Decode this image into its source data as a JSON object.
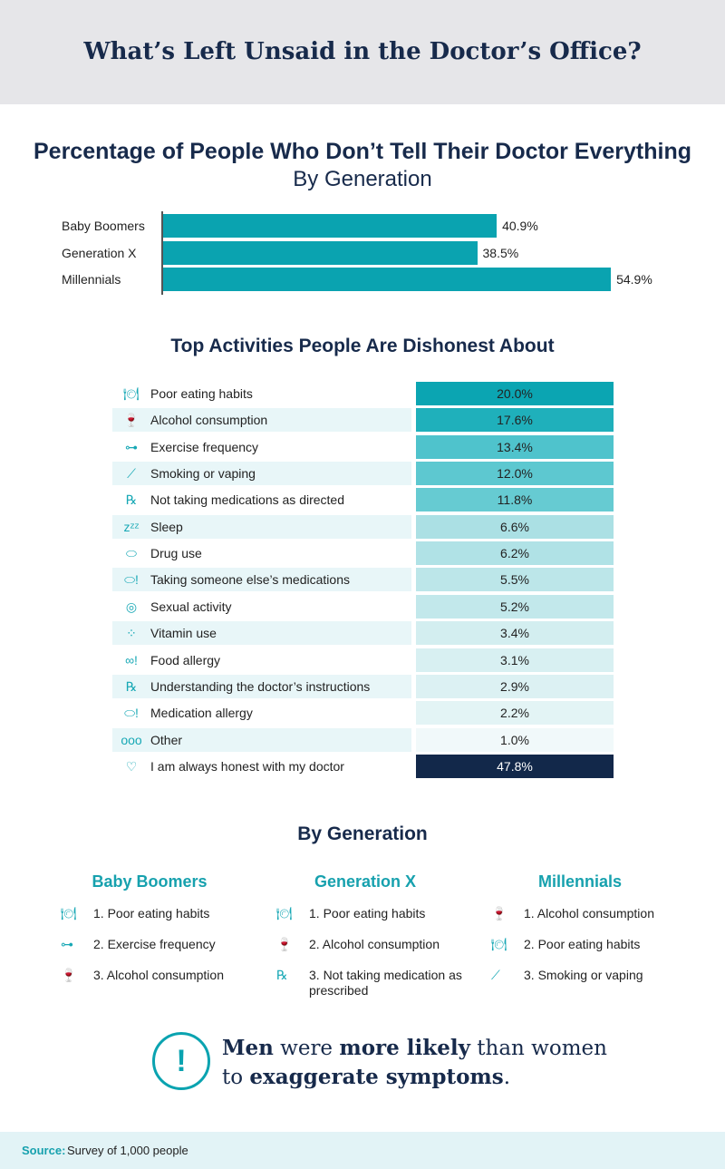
{
  "title": "What’s Left Unsaid in the Doctor’s Office?",
  "chart_data": [
    {
      "type": "bar",
      "orientation": "horizontal",
      "title": "Percentage of People Who Don’t Tell Their Doctor Everything",
      "subtitle": "By Generation",
      "categories": [
        "Baby Boomers",
        "Generation X",
        "Millennials"
      ],
      "values": [
        40.9,
        38.5,
        54.9
      ],
      "labels": [
        "40.9%",
        "38.5%",
        "54.9%"
      ],
      "color": "#0aa3b0"
    },
    {
      "type": "table",
      "title": "Top Activities People Are Dishonest About",
      "rows": [
        {
          "icon": "plate-icon",
          "label": "Poor eating habits",
          "value": "20.0%",
          "color": "#0ba5b2"
        },
        {
          "icon": "wine-bottle-icon",
          "label": "Alcohol consumption",
          "value": "17.6%",
          "color": "#1fb0bb"
        },
        {
          "icon": "dumbbell-icon",
          "label": "Exercise frequency",
          "value": "13.4%",
          "color": "#4fc3cc"
        },
        {
          "icon": "cigarette-icon",
          "label": "Smoking or vaping",
          "value": "12.0%",
          "color": "#5dc8d0"
        },
        {
          "icon": "prescription-icon",
          "label": "Not taking medications as directed",
          "value": "11.8%",
          "color": "#66cbd2"
        },
        {
          "icon": "zzz-icon",
          "label": "Sleep",
          "value": "6.6%",
          "color": "#abe0e4"
        },
        {
          "icon": "pill-icon",
          "label": "Drug use",
          "value": "6.2%",
          "color": "#b0e2e6"
        },
        {
          "icon": "pill-alert-icon",
          "label": "Taking someone else’s medications",
          "value": "5.5%",
          "color": "#bce6e9"
        },
        {
          "icon": "condom-icon",
          "label": "Sexual activity",
          "value": "5.2%",
          "color": "#c2e8eb"
        },
        {
          "icon": "vitamins-icon",
          "label": "Vitamin use",
          "value": "3.4%",
          "color": "#d3eef0"
        },
        {
          "icon": "peanut-alert-icon",
          "label": "Food allergy",
          "value": "3.1%",
          "color": "#d8f0f2"
        },
        {
          "icon": "prescription-icon",
          "label": "Understanding the doctor’s instructions",
          "value": "2.9%",
          "color": "#dcf1f3"
        },
        {
          "icon": "pill-alert-icon",
          "label": "Medication allergy",
          "value": "2.2%",
          "color": "#e3f4f5"
        },
        {
          "icon": "dots-icon",
          "label": "Other",
          "value": "1.0%",
          "color": "#f1f9fa"
        },
        {
          "icon": "heart-hand-icon",
          "label": "I am always honest with my doctor",
          "value": "47.8%",
          "color": "#12284a"
        }
      ]
    }
  ],
  "by_generation": {
    "title": "By Generation",
    "groups": [
      {
        "name": "Baby Boomers",
        "items": [
          {
            "icon": "plate-icon",
            "text": "1. Poor eating habits"
          },
          {
            "icon": "dumbbell-icon",
            "text": "2. Exercise frequency"
          },
          {
            "icon": "wine-bottle-icon",
            "text": "3. Alcohol consumption"
          }
        ]
      },
      {
        "name": "Generation X",
        "items": [
          {
            "icon": "plate-icon",
            "text": "1. Poor eating habits"
          },
          {
            "icon": "wine-bottle-icon",
            "text": "2. Alcohol consumption"
          },
          {
            "icon": "prescription-icon",
            "text": "3. Not taking medication as prescribed"
          }
        ]
      },
      {
        "name": "Millennials",
        "items": [
          {
            "icon": "wine-bottle-icon",
            "text": "1. Alcohol consumption"
          },
          {
            "icon": "plate-icon",
            "text": "2. Poor eating habits"
          },
          {
            "icon": "cigarette-icon",
            "text": "3. Smoking or vaping"
          }
        ]
      }
    ]
  },
  "note": {
    "p1": "Men",
    "p2": " were ",
    "p3": "more likely",
    "p4": " than women",
    "p5": "to ",
    "p6": "exaggerate symptoms",
    "p7": "."
  },
  "footer": {
    "label": "Source:",
    "text": "Survey of 1,000 people"
  }
}
